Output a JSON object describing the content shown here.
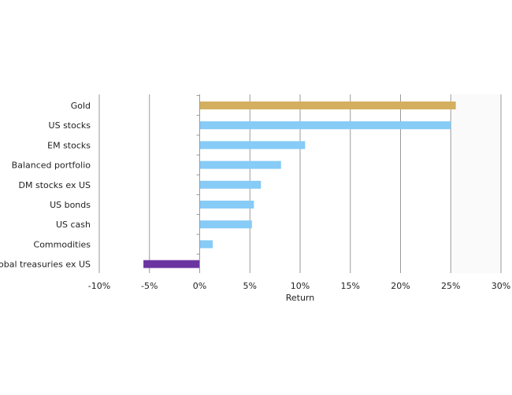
{
  "chart_data": {
    "type": "bar",
    "orientation": "horizontal",
    "categories": [
      "Gold",
      "US stocks",
      "EM stocks",
      "Balanced portfolio",
      "DM stocks ex US",
      "US bonds",
      "US cash",
      "Commodities",
      "Global treasuries ex US"
    ],
    "values": [
      25.5,
      25.0,
      10.5,
      8.1,
      6.1,
      5.4,
      5.2,
      1.3,
      -5.6
    ],
    "colors": [
      "#D4AF5F",
      "#87CBF7",
      "#87CBF7",
      "#87CBF7",
      "#87CBF7",
      "#87CBF7",
      "#87CBF7",
      "#87CBF7",
      "#6A35A0"
    ],
    "xlim": [
      -10,
      30
    ],
    "xticks": [
      -10,
      -5,
      0,
      5,
      10,
      15,
      20,
      25,
      30
    ],
    "xtick_labels": [
      "-10%",
      "-5%",
      "0%",
      "5%",
      "10%",
      "15%",
      "20%",
      "25%",
      "30%"
    ],
    "xlabel": "Return",
    "ylabel": "",
    "title": "",
    "grid": "vertical",
    "legend": "none"
  }
}
